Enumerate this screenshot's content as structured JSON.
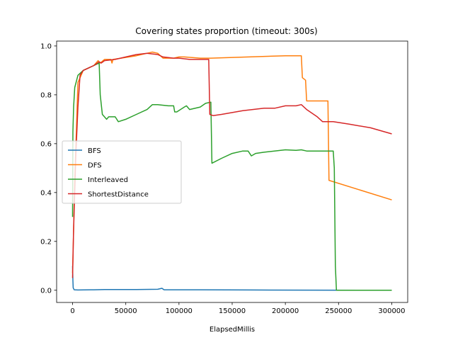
{
  "chart_data": {
    "type": "line",
    "title": "Covering states proportion (timeout: 300s)",
    "xlabel": "ElapsedMillis",
    "ylabel": "",
    "xlim": [
      -15000,
      315000
    ],
    "ylim": [
      -0.05,
      1.02
    ],
    "xticks": [
      0,
      50000,
      100000,
      150000,
      200000,
      250000,
      300000
    ],
    "xtick_labels": [
      "0",
      "50000",
      "100000",
      "150000",
      "200000",
      "250000",
      "300000"
    ],
    "yticks": [
      0.0,
      0.2,
      0.4,
      0.6,
      0.8,
      1.0
    ],
    "ytick_labels": [
      "0.0",
      "0.2",
      "0.4",
      "0.6",
      "0.8",
      "1.0"
    ],
    "grid": false,
    "legend_position": "center-left",
    "series": [
      {
        "name": "BFS",
        "color": "#1f77b4",
        "points": [
          [
            0,
            0.1
          ],
          [
            300,
            0.04
          ],
          [
            600,
            0.01
          ],
          [
            1500,
            0.002
          ],
          [
            5000,
            0.001
          ],
          [
            20000,
            0.002
          ],
          [
            30000,
            0.003
          ],
          [
            60000,
            0.003
          ],
          [
            80000,
            0.004
          ],
          [
            84000,
            0.008
          ],
          [
            86000,
            0.002
          ],
          [
            120000,
            0.002
          ],
          [
            170000,
            0.001
          ],
          [
            300000,
            0.0
          ]
        ]
      },
      {
        "name": "DFS",
        "color": "#ff7f0e",
        "points": [
          [
            0,
            0.07
          ],
          [
            2000,
            0.45
          ],
          [
            5000,
            0.85
          ],
          [
            10000,
            0.9
          ],
          [
            20000,
            0.92
          ],
          [
            24000,
            0.94
          ],
          [
            26000,
            0.93
          ],
          [
            30000,
            0.945
          ],
          [
            36000,
            0.945
          ],
          [
            37000,
            0.93
          ],
          [
            38000,
            0.945
          ],
          [
            60000,
            0.96
          ],
          [
            70000,
            0.97
          ],
          [
            75000,
            0.975
          ],
          [
            80000,
            0.97
          ],
          [
            85000,
            0.95
          ],
          [
            95000,
            0.95
          ],
          [
            100000,
            0.955
          ],
          [
            105000,
            0.955
          ],
          [
            120000,
            0.95
          ],
          [
            130000,
            0.95
          ],
          [
            200000,
            0.96
          ],
          [
            215000,
            0.96
          ],
          [
            216000,
            0.87
          ],
          [
            219000,
            0.86
          ],
          [
            220000,
            0.775
          ],
          [
            240000,
            0.775
          ],
          [
            241000,
            0.45
          ],
          [
            300000,
            0.37
          ]
        ]
      },
      {
        "name": "Interleaved",
        "color": "#2ca02c",
        "points": [
          [
            0,
            0.3
          ],
          [
            300,
            0.65
          ],
          [
            1000,
            0.75
          ],
          [
            2000,
            0.83
          ],
          [
            5000,
            0.88
          ],
          [
            10000,
            0.9
          ],
          [
            15000,
            0.91
          ],
          [
            20000,
            0.92
          ],
          [
            25000,
            0.93
          ],
          [
            26000,
            0.8
          ],
          [
            28000,
            0.72
          ],
          [
            32000,
            0.7
          ],
          [
            34000,
            0.71
          ],
          [
            40000,
            0.71
          ],
          [
            43000,
            0.69
          ],
          [
            50000,
            0.7
          ],
          [
            60000,
            0.72
          ],
          [
            70000,
            0.74
          ],
          [
            75000,
            0.76
          ],
          [
            80000,
            0.76
          ],
          [
            90000,
            0.755
          ],
          [
            95000,
            0.755
          ],
          [
            96000,
            0.73
          ],
          [
            98000,
            0.73
          ],
          [
            105000,
            0.75
          ],
          [
            107000,
            0.755
          ],
          [
            110000,
            0.74
          ],
          [
            120000,
            0.75
          ],
          [
            125000,
            0.765
          ],
          [
            130000,
            0.77
          ],
          [
            131000,
            0.52
          ],
          [
            140000,
            0.54
          ],
          [
            150000,
            0.56
          ],
          [
            160000,
            0.57
          ],
          [
            165000,
            0.57
          ],
          [
            168000,
            0.55
          ],
          [
            172000,
            0.56
          ],
          [
            180000,
            0.565
          ],
          [
            200000,
            0.575
          ],
          [
            210000,
            0.573
          ],
          [
            215000,
            0.575
          ],
          [
            220000,
            0.57
          ],
          [
            245000,
            0.57
          ],
          [
            246000,
            0.5
          ],
          [
            247000,
            0.1
          ],
          [
            248000,
            0.0
          ],
          [
            300000,
            0.0
          ]
        ]
      },
      {
        "name": "ShortestDistance",
        "color": "#d62728",
        "points": [
          [
            0,
            0.05
          ],
          [
            1000,
            0.25
          ],
          [
            3000,
            0.55
          ],
          [
            5000,
            0.75
          ],
          [
            7000,
            0.88
          ],
          [
            10000,
            0.9
          ],
          [
            20000,
            0.92
          ],
          [
            25000,
            0.935
          ],
          [
            27000,
            0.93
          ],
          [
            30000,
            0.94
          ],
          [
            40000,
            0.945
          ],
          [
            50000,
            0.955
          ],
          [
            60000,
            0.965
          ],
          [
            70000,
            0.97
          ],
          [
            80000,
            0.965
          ],
          [
            85000,
            0.955
          ],
          [
            95000,
            0.95
          ],
          [
            100000,
            0.95
          ],
          [
            110000,
            0.945
          ],
          [
            120000,
            0.945
          ],
          [
            128000,
            0.945
          ],
          [
            129000,
            0.72
          ],
          [
            132000,
            0.715
          ],
          [
            140000,
            0.72
          ],
          [
            160000,
            0.735
          ],
          [
            180000,
            0.745
          ],
          [
            190000,
            0.745
          ],
          [
            200000,
            0.755
          ],
          [
            210000,
            0.755
          ],
          [
            215000,
            0.76
          ],
          [
            220000,
            0.74
          ],
          [
            230000,
            0.71
          ],
          [
            235000,
            0.69
          ],
          [
            245000,
            0.69
          ],
          [
            260000,
            0.68
          ],
          [
            280000,
            0.665
          ],
          [
            300000,
            0.64
          ]
        ]
      }
    ]
  }
}
